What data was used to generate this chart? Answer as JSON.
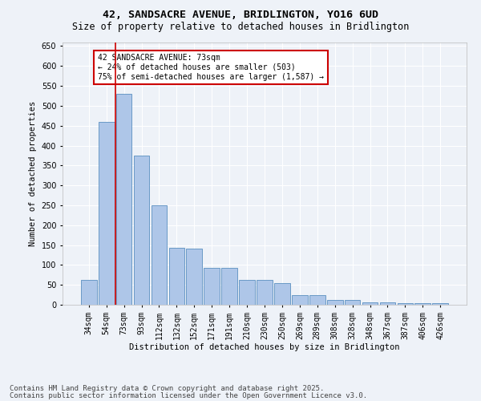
{
  "title_line1": "42, SANDSACRE AVENUE, BRIDLINGTON, YO16 6UD",
  "title_line2": "Size of property relative to detached houses in Bridlington",
  "xlabel": "Distribution of detached houses by size in Bridlington",
  "ylabel": "Number of detached properties",
  "categories": [
    "34sqm",
    "54sqm",
    "73sqm",
    "93sqm",
    "112sqm",
    "132sqm",
    "152sqm",
    "171sqm",
    "191sqm",
    "210sqm",
    "230sqm",
    "250sqm",
    "269sqm",
    "289sqm",
    "308sqm",
    "328sqm",
    "348sqm",
    "367sqm",
    "387sqm",
    "406sqm",
    "426sqm"
  ],
  "values": [
    62,
    460,
    530,
    375,
    250,
    143,
    142,
    93,
    92,
    62,
    62,
    54,
    25,
    25,
    12,
    12,
    7,
    7,
    5,
    5,
    5
  ],
  "bar_color": "#aec6e8",
  "bar_edge_color": "#5a8fc0",
  "red_line_x": 1.5,
  "annotation_text": "42 SANDSACRE AVENUE: 73sqm\n← 24% of detached houses are smaller (503)\n75% of semi-detached houses are larger (1,587) →",
  "annotation_box_color": "#ffffff",
  "annotation_box_edge": "#cc0000",
  "ylim": [
    0,
    660
  ],
  "yticks": [
    0,
    50,
    100,
    150,
    200,
    250,
    300,
    350,
    400,
    450,
    500,
    550,
    600,
    650
  ],
  "footer_line1": "Contains HM Land Registry data © Crown copyright and database right 2025.",
  "footer_line2": "Contains public sector information licensed under the Open Government Licence v3.0.",
  "bg_color": "#eef2f8",
  "plot_bg_color": "#eef2f8",
  "grid_color": "#ffffff",
  "title_fontsize": 9.5,
  "subtitle_fontsize": 8.5,
  "axis_label_fontsize": 7.5,
  "tick_fontsize": 7,
  "annotation_fontsize": 7,
  "footer_fontsize": 6.5
}
